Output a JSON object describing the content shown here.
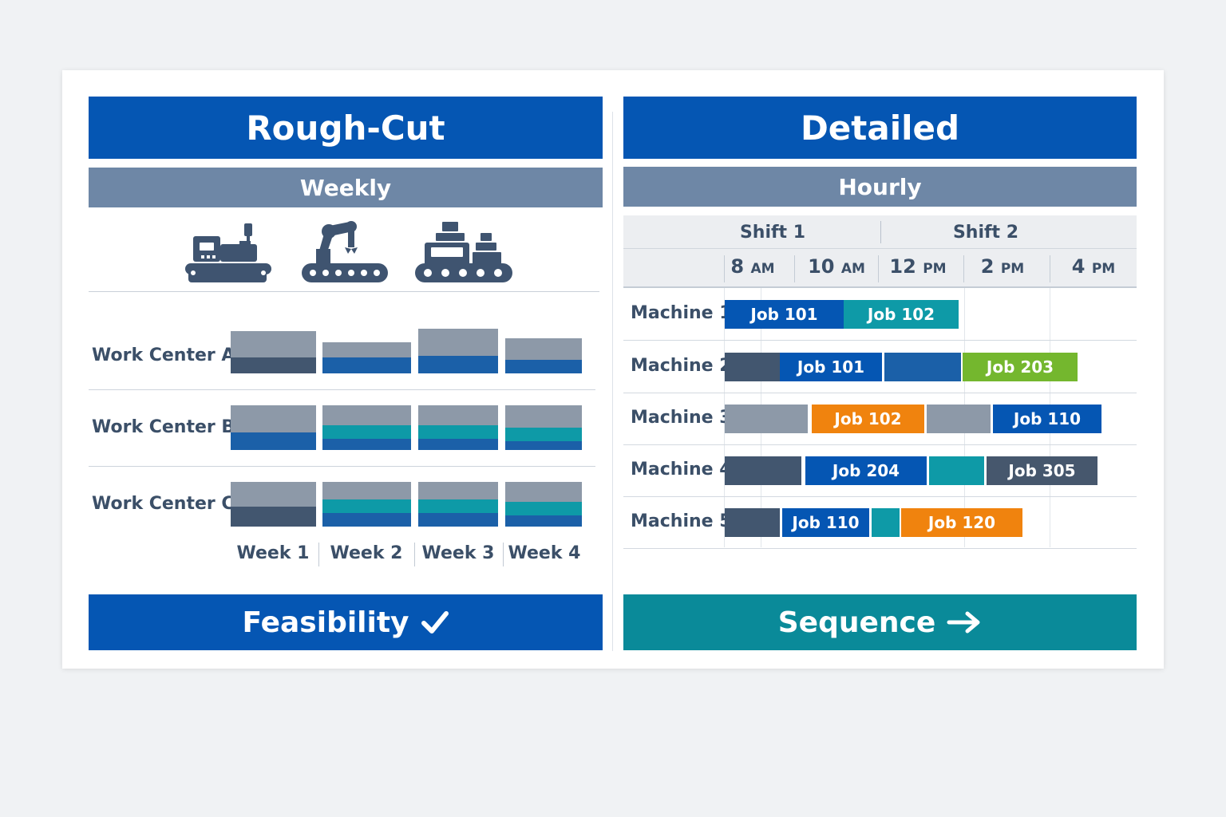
{
  "colors": {
    "primary": "#0556b3",
    "sub": "#6e87a6",
    "teal": "#0a8a99",
    "gray": "#8d99a8",
    "slate": "#42566f",
    "blue": "#1b60a8",
    "cyan": "#0e9aa7",
    "green": "#74b72e",
    "orange": "#f0830e",
    "dark_slate": "#46576d"
  },
  "left": {
    "title": "Rough-Cut",
    "subtitle": "Weekly",
    "icons": [
      "cnc-machine-icon",
      "robot-arm-icon",
      "conveyor-boxes-icon"
    ],
    "rows": [
      {
        "label": "Work Center A",
        "weeks": [
          {
            "total": 0.95,
            "parts": [
              {
                "color": "slate",
                "frac": 0.35
              }
            ]
          },
          {
            "total": 0.7,
            "parts": [
              {
                "color": "blue",
                "frac": 0.35
              }
            ]
          },
          {
            "total": 1.0,
            "parts": [
              {
                "color": "blue",
                "frac": 0.4
              }
            ]
          },
          {
            "total": 0.78,
            "parts": [
              {
                "color": "blue",
                "frac": 0.3
              }
            ]
          }
        ]
      },
      {
        "label": "Work Center B",
        "weeks": [
          {
            "total": 1.0,
            "parts": [
              {
                "color": "blue",
                "frac": 0.4
              }
            ]
          },
          {
            "total": 1.0,
            "parts": [
              {
                "color": "blue",
                "frac": 0.25
              },
              {
                "color": "cyan",
                "frac": 0.3
              }
            ]
          },
          {
            "total": 1.0,
            "parts": [
              {
                "color": "blue",
                "frac": 0.25
              },
              {
                "color": "cyan",
                "frac": 0.3
              }
            ]
          },
          {
            "total": 1.0,
            "parts": [
              {
                "color": "blue",
                "frac": 0.2
              },
              {
                "color": "cyan",
                "frac": 0.3
              }
            ]
          }
        ]
      },
      {
        "label": "Work Center C",
        "weeks": [
          {
            "total": 1.0,
            "parts": [
              {
                "color": "slate",
                "frac": 0.45
              }
            ]
          },
          {
            "total": 1.0,
            "parts": [
              {
                "color": "blue",
                "frac": 0.3
              },
              {
                "color": "cyan",
                "frac": 0.3
              }
            ]
          },
          {
            "total": 1.0,
            "parts": [
              {
                "color": "blue",
                "frac": 0.3
              },
              {
                "color": "cyan",
                "frac": 0.3
              }
            ]
          },
          {
            "total": 1.0,
            "parts": [
              {
                "color": "blue",
                "frac": 0.25
              },
              {
                "color": "cyan",
                "frac": 0.3
              }
            ]
          }
        ]
      }
    ],
    "weeks": [
      "Week 1",
      "Week 2",
      "Week 3",
      "Week 4"
    ],
    "footer": "Feasibility",
    "footer_icon": "checkmark-icon"
  },
  "right": {
    "title": "Detailed",
    "subtitle": "Hourly",
    "shifts": [
      "Shift 1",
      "Shift 2"
    ],
    "times": [
      {
        "num": "8",
        "ampm": "AM"
      },
      {
        "num": "10",
        "ampm": "AM"
      },
      {
        "num": "12",
        "ampm": "PM"
      },
      {
        "num": "2",
        "ampm": "PM"
      },
      {
        "num": "4",
        "ampm": "PM"
      }
    ],
    "machines": [
      {
        "label": "Machine 1",
        "jobs": [
          {
            "start": 8.0,
            "end": 10.8,
            "label": "Job 101",
            "color": "primary"
          },
          {
            "start": 10.8,
            "end": 13.5,
            "label": "Job 102",
            "color": "cyan"
          }
        ]
      },
      {
        "label": "Machine 2",
        "jobs": [
          {
            "start": 8.0,
            "end": 9.3,
            "label": "",
            "color": "slate"
          },
          {
            "start": 9.3,
            "end": 11.7,
            "label": "Job 101",
            "color": "primary"
          },
          {
            "start": 11.75,
            "end": 13.55,
            "label": "",
            "color": "blue"
          },
          {
            "start": 13.6,
            "end": 16.3,
            "label": "Job 203",
            "color": "green"
          }
        ]
      },
      {
        "label": "Machine 3",
        "jobs": [
          {
            "start": 8.0,
            "end": 9.95,
            "label": "",
            "color": "gray"
          },
          {
            "start": 10.05,
            "end": 12.7,
            "label": "Job 102",
            "color": "orange"
          },
          {
            "start": 12.75,
            "end": 14.25,
            "label": "",
            "color": "gray"
          },
          {
            "start": 14.3,
            "end": 16.85,
            "label": "Job 110",
            "color": "primary"
          }
        ]
      },
      {
        "label": "Machine 4",
        "jobs": [
          {
            "start": 8.0,
            "end": 9.8,
            "label": "",
            "color": "slate"
          },
          {
            "start": 9.9,
            "end": 12.75,
            "label": "Job 204",
            "color": "primary"
          },
          {
            "start": 12.8,
            "end": 14.1,
            "label": "",
            "color": "cyan"
          },
          {
            "start": 14.15,
            "end": 16.75,
            "label": "Job 305",
            "color": "dark_slate"
          }
        ]
      },
      {
        "label": "Machine 5",
        "jobs": [
          {
            "start": 8.0,
            "end": 9.3,
            "label": "",
            "color": "slate"
          },
          {
            "start": 9.35,
            "end": 11.4,
            "label": "Job 110",
            "color": "primary"
          },
          {
            "start": 11.45,
            "end": 12.1,
            "label": "",
            "color": "cyan"
          },
          {
            "start": 12.15,
            "end": 15.0,
            "label": "Job 120",
            "color": "orange"
          }
        ]
      }
    ],
    "footer": "Sequence",
    "footer_icon": "arrow-right-icon"
  }
}
